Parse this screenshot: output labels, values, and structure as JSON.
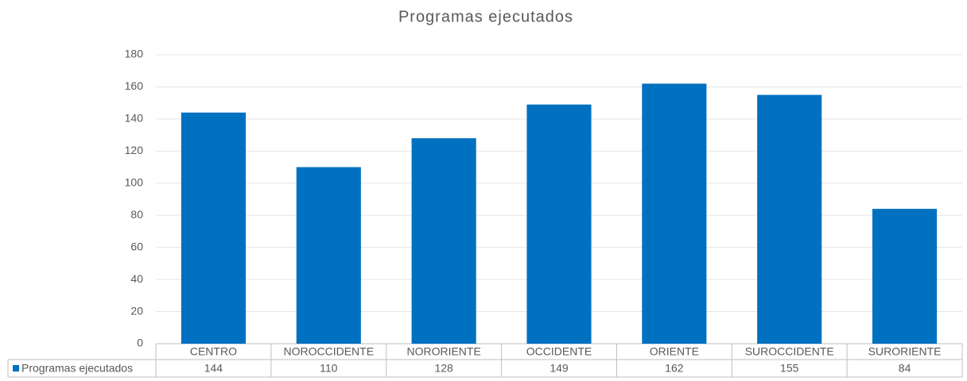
{
  "chart_data": {
    "type": "bar",
    "title": "Programas ejecutados",
    "categories": [
      "CENTRO",
      "NOROCCIDENTE",
      "NORORIENTE",
      "OCCIDENTE",
      "ORIENTE",
      "SUROCCIDENTE",
      "SURORIENTE"
    ],
    "series": [
      {
        "name": "Programas ejecutados",
        "color": "#0070c0",
        "values": [
          144,
          110,
          128,
          149,
          162,
          155,
          84
        ]
      }
    ],
    "ylim": [
      0,
      180
    ],
    "yticks": [
      0,
      20,
      40,
      60,
      80,
      100,
      120,
      140,
      160,
      180
    ],
    "grid": true
  }
}
